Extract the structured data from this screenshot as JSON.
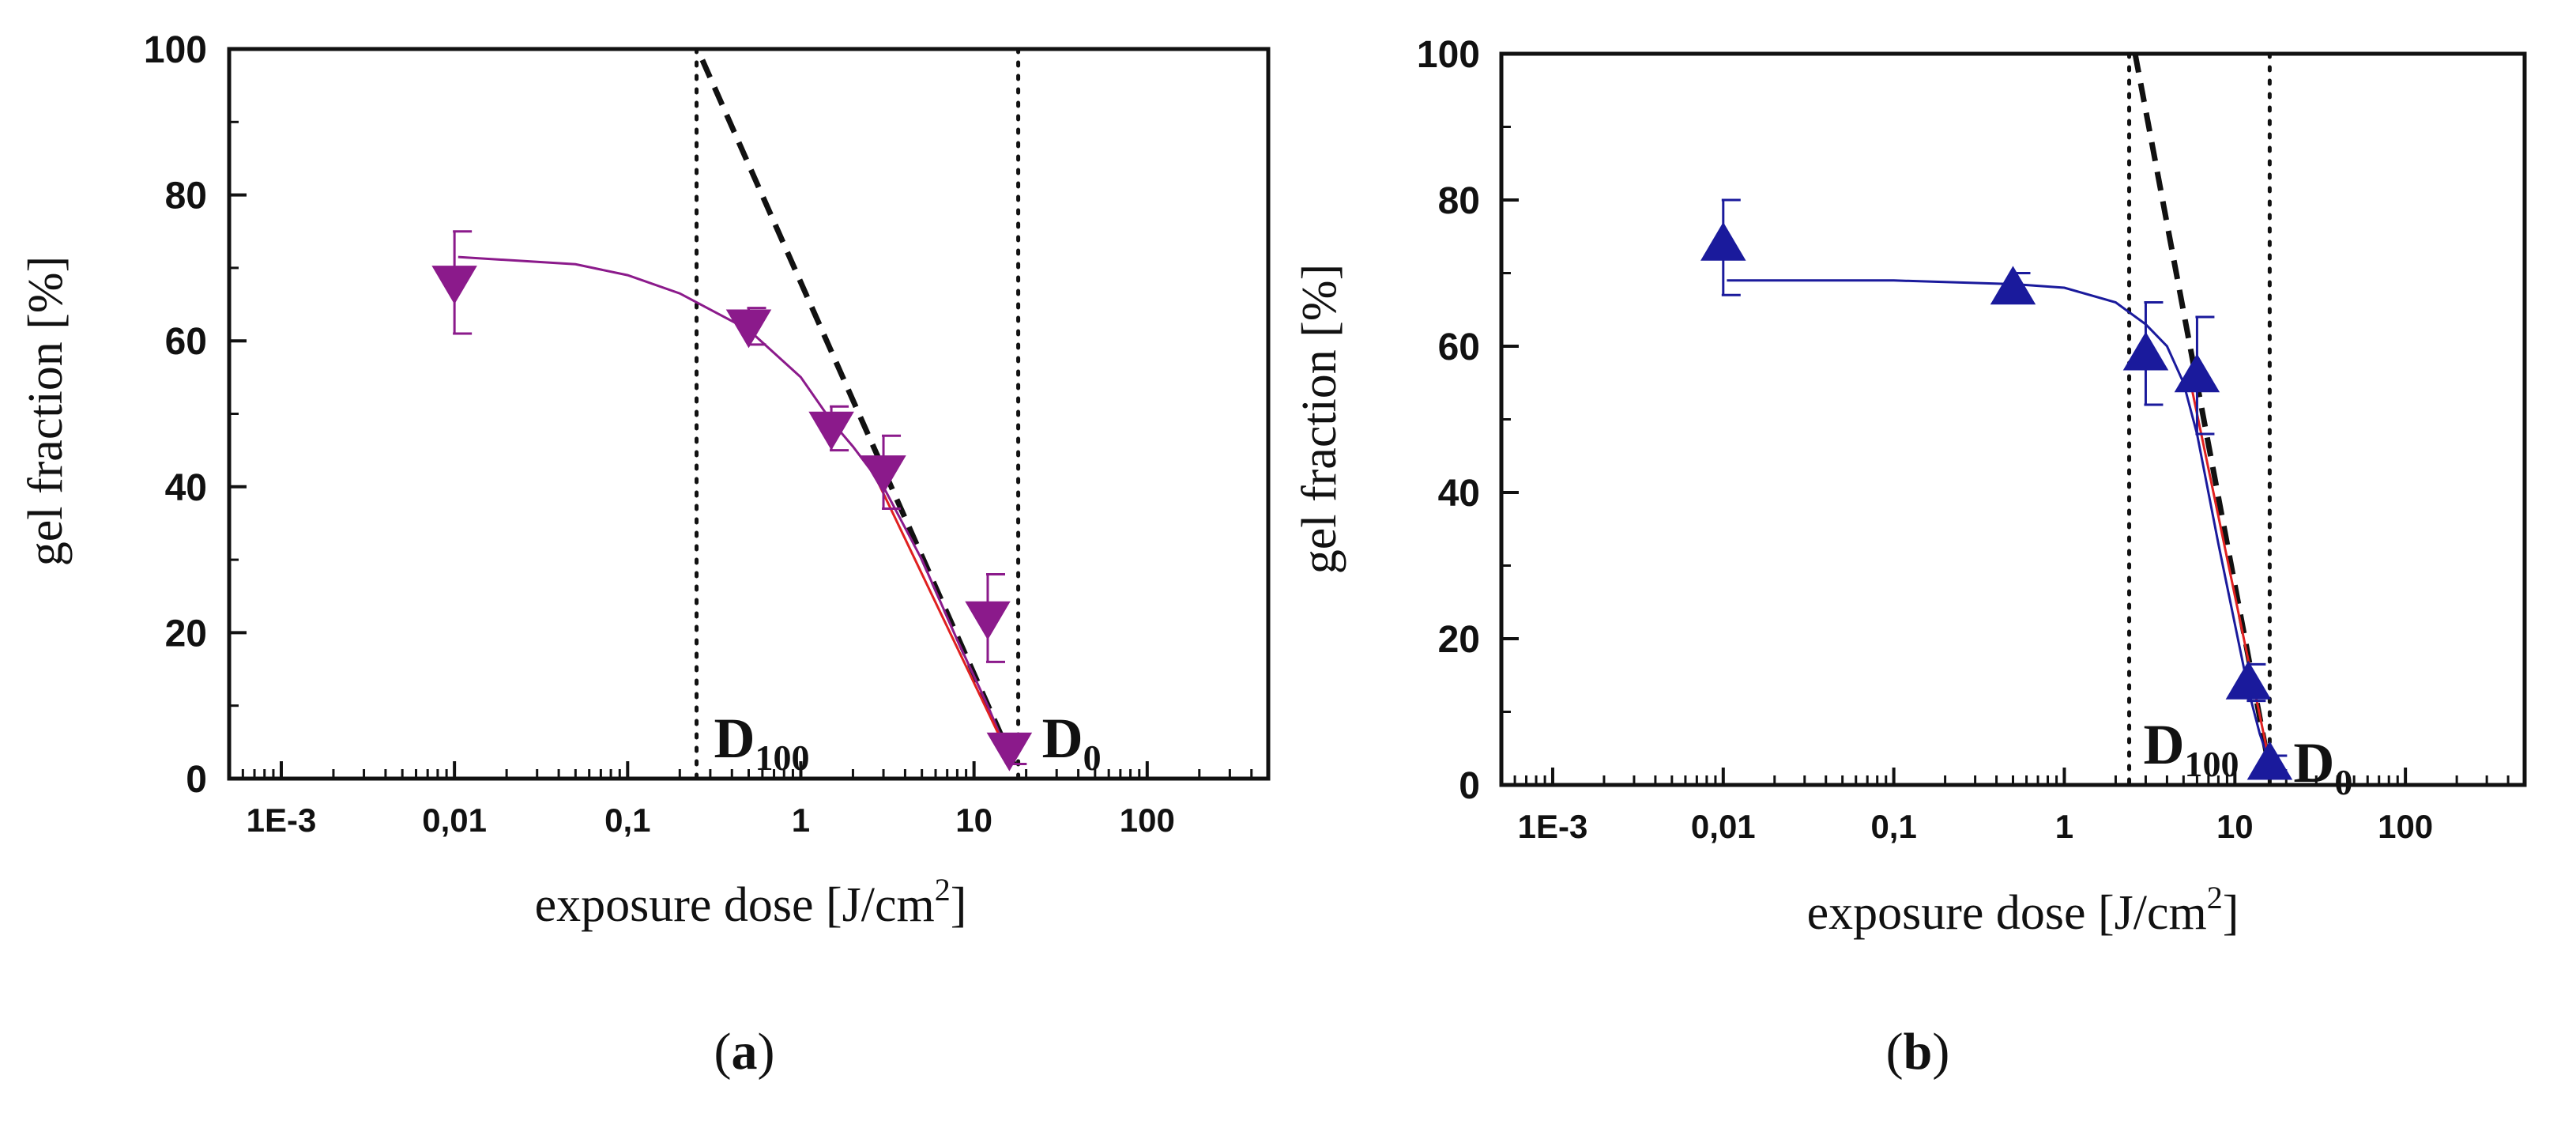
{
  "chart_data": [
    {
      "panel": "(a)",
      "panel_open": "(",
      "panel_letter": "a",
      "panel_close": ")",
      "type": "scatter",
      "xscale": "log",
      "xlim": [
        0.0005,
        500
      ],
      "ylim": [
        0,
        100
      ],
      "xlabel_main": "exposure dose [J/cm",
      "xlabel_sup": "2",
      "xlabel_end": "]",
      "ylabel": "gel fraction [%]",
      "xticks": [
        {
          "v": 0.001,
          "label": "1E-3"
        },
        {
          "v": 0.01,
          "label": "0,01"
        },
        {
          "v": 0.1,
          "label": "0,1"
        },
        {
          "v": 1,
          "label": "1"
        },
        {
          "v": 10,
          "label": "10"
        },
        {
          "v": 100,
          "label": "100"
        }
      ],
      "yticks": [
        {
          "v": 0,
          "label": "0"
        },
        {
          "v": 20,
          "label": "20"
        },
        {
          "v": 40,
          "label": "40"
        },
        {
          "v": 60,
          "label": "60"
        },
        {
          "v": 80,
          "label": "80"
        },
        {
          "v": 100,
          "label": "100"
        }
      ],
      "color": "#8B1A8B",
      "marker": "triangle-down",
      "points": [
        {
          "x": 0.01,
          "y": 68,
          "err_up": 7,
          "err_down": 7
        },
        {
          "x": 0.5,
          "y": 62,
          "err_up": 2.5,
          "err_down": 2.5
        },
        {
          "x": 1.5,
          "y": 48,
          "err_up": 3,
          "err_down": 3
        },
        {
          "x": 3,
          "y": 42,
          "err_up": 5,
          "err_down": 5
        },
        {
          "x": 12,
          "y": 22,
          "err_up": 6,
          "err_down": 6
        },
        {
          "x": 16,
          "y": 4,
          "err_up": 2,
          "err_down": 2
        }
      ],
      "fit_curve": [
        [
          0.0105,
          71.5
        ],
        [
          0.05,
          70.5
        ],
        [
          0.1,
          69
        ],
        [
          0.2,
          66.5
        ],
        [
          0.5,
          61.5
        ],
        [
          1,
          55
        ],
        [
          1.5,
          49
        ],
        [
          2,
          45.5
        ],
        [
          3,
          40
        ],
        [
          5,
          30
        ],
        [
          8,
          19
        ],
        [
          12,
          10
        ],
        [
          16,
          3
        ]
      ],
      "red_fit": [
        [
          2.5,
          43
        ],
        [
          16,
          3
        ]
      ],
      "dashed_line": [
        [
          0.27,
          98.5
        ],
        [
          17,
          2
        ]
      ],
      "D100_x": 0.25,
      "D0_x": 18,
      "d100_main": "D",
      "d100_sub": "100",
      "d0_main": "D",
      "d0_sub": "0"
    },
    {
      "panel": "(b)",
      "panel_open": "(",
      "panel_letter": "b",
      "panel_close": ")",
      "type": "scatter",
      "xscale": "log",
      "xlim": [
        0.0005,
        500
      ],
      "ylim": [
        0,
        100
      ],
      "xlabel_main": "exposure dose [J/cm",
      "xlabel_sup": "2",
      "xlabel_end": "]",
      "ylabel": "gel fraction [%]",
      "xticks": [
        {
          "v": 0.001,
          "label": "1E-3"
        },
        {
          "v": 0.01,
          "label": "0,01"
        },
        {
          "v": 0.1,
          "label": "0,1"
        },
        {
          "v": 1,
          "label": "1"
        },
        {
          "v": 10,
          "label": "10"
        },
        {
          "v": 100,
          "label": "100"
        }
      ],
      "yticks": [
        {
          "v": 0,
          "label": "0"
        },
        {
          "v": 20,
          "label": "20"
        },
        {
          "v": 40,
          "label": "40"
        },
        {
          "v": 60,
          "label": "60"
        },
        {
          "v": 80,
          "label": "80"
        },
        {
          "v": 100,
          "label": "100"
        }
      ],
      "color": "#1A1A9C",
      "marker": "triangle-up",
      "points": [
        {
          "x": 0.01,
          "y": 74,
          "err_up": 6,
          "err_down": 7
        },
        {
          "x": 0.5,
          "y": 68,
          "err_up": 2,
          "err_down": 2
        },
        {
          "x": 3,
          "y": 59,
          "err_up": 7,
          "err_down": 7
        },
        {
          "x": 6,
          "y": 56,
          "err_up": 8,
          "err_down": 8
        },
        {
          "x": 12,
          "y": 14,
          "err_up": 2.5,
          "err_down": 2.5
        },
        {
          "x": 16,
          "y": 3,
          "err_up": 1,
          "err_down": 1
        }
      ],
      "fit_curve": [
        [
          0.0105,
          69
        ],
        [
          0.1,
          69
        ],
        [
          0.5,
          68.5
        ],
        [
          1,
          68
        ],
        [
          2,
          66
        ],
        [
          3,
          63
        ],
        [
          4,
          60
        ],
        [
          5,
          55
        ],
        [
          6,
          48
        ],
        [
          8,
          33
        ],
        [
          10,
          22
        ],
        [
          12,
          13
        ],
        [
          14,
          7
        ],
        [
          16,
          3
        ]
      ],
      "red_fit": [
        [
          5.5,
          55
        ],
        [
          16,
          3
        ]
      ],
      "dashed_line": [
        [
          2.6,
          100
        ],
        [
          16,
          2
        ]
      ],
      "D100_x": 2.4,
      "D0_x": 16,
      "d100_main": "D",
      "d100_sub": "100",
      "d0_main": "D",
      "d0_sub": "0"
    }
  ]
}
